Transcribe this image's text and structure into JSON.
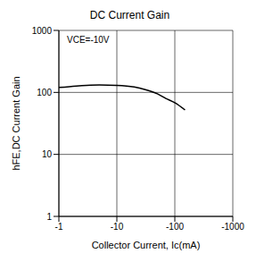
{
  "chart_data": {
    "type": "line",
    "title": "DC Current Gain",
    "x_label": "Collector Current, Ic(mA)",
    "y_label": "hFE,DC Current Gain",
    "annotation": "VCE=-10V",
    "x": [
      -1,
      -2,
      -3,
      -5,
      -10,
      -20,
      -30,
      -50,
      -70,
      -100,
      -150
    ],
    "values": [
      120,
      127,
      130,
      132,
      130,
      122,
      112,
      95,
      80,
      68,
      52
    ],
    "color": "#000000",
    "xlim": [
      -1,
      -1000
    ],
    "ylim": [
      1,
      1000
    ],
    "xticks": [
      -1,
      -10,
      -100,
      -1000
    ],
    "yticks": [
      1,
      10,
      100,
      1000
    ],
    "log": true,
    "grid": true
  }
}
